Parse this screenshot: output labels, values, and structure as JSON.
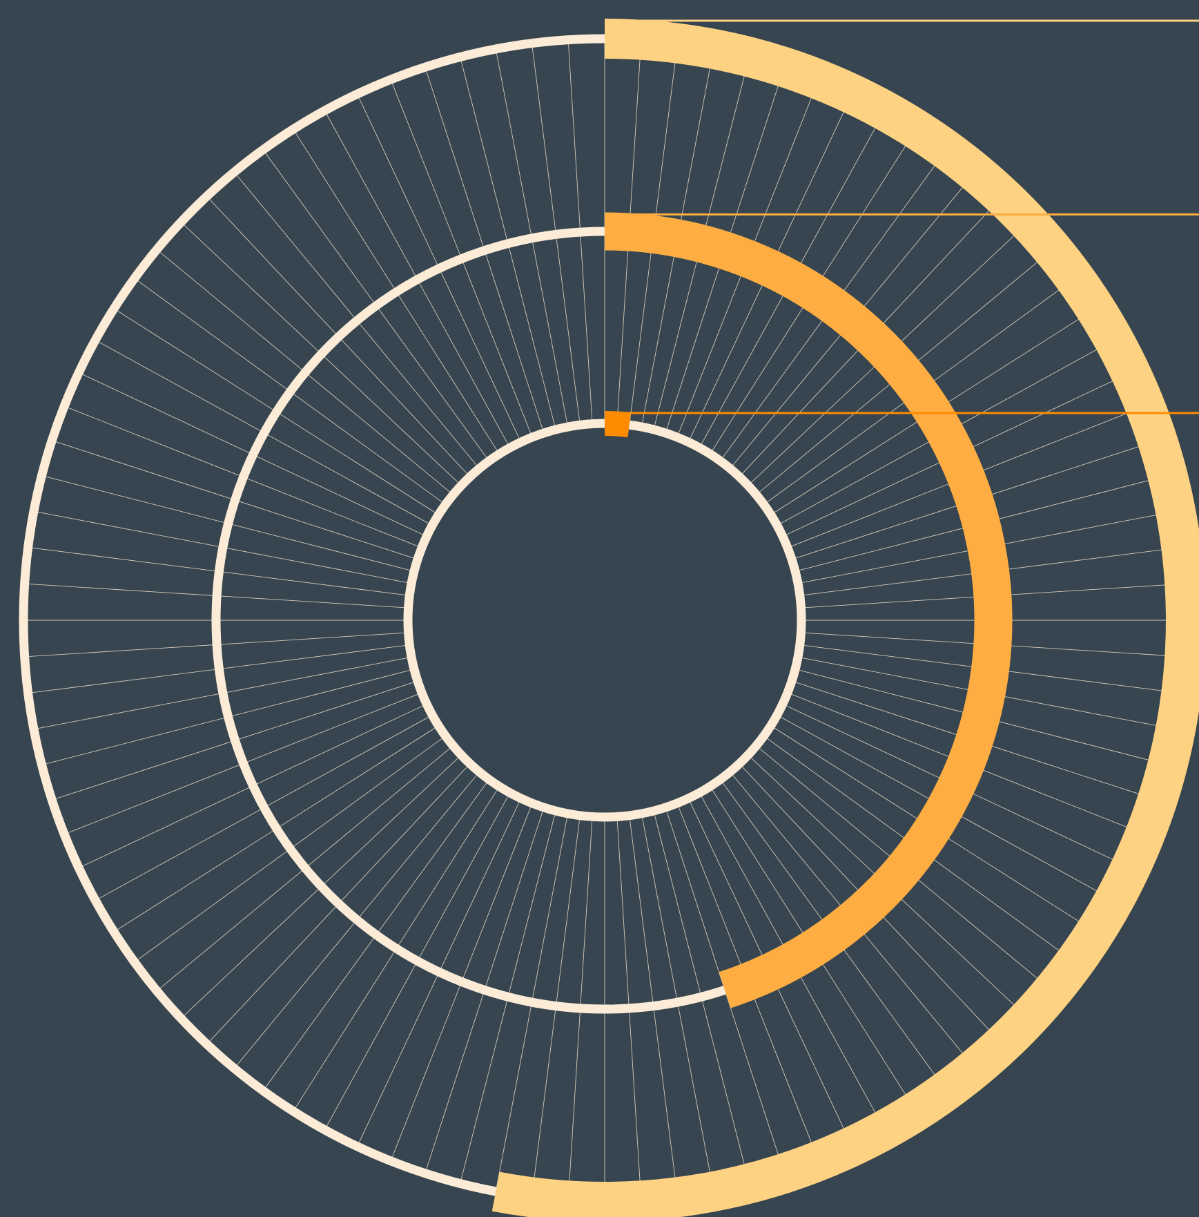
{
  "chart_data": {
    "type": "radial-bar",
    "title": "",
    "direction": "clockwise",
    "start_angle_deg": 0,
    "full_scale": 100,
    "tick_count": 100,
    "grid": true,
    "legend": "none",
    "series": [
      {
        "value": 53
      },
      {
        "value": 45
      },
      {
        "value": 2
      }
    ],
    "colors": {
      "background": "#36454f",
      "track": "#fcebd6",
      "grid": "#f2e3cf",
      "bars": [
        "#fed283",
        "#fead42",
        "#ff8c00"
      ]
    }
  }
}
